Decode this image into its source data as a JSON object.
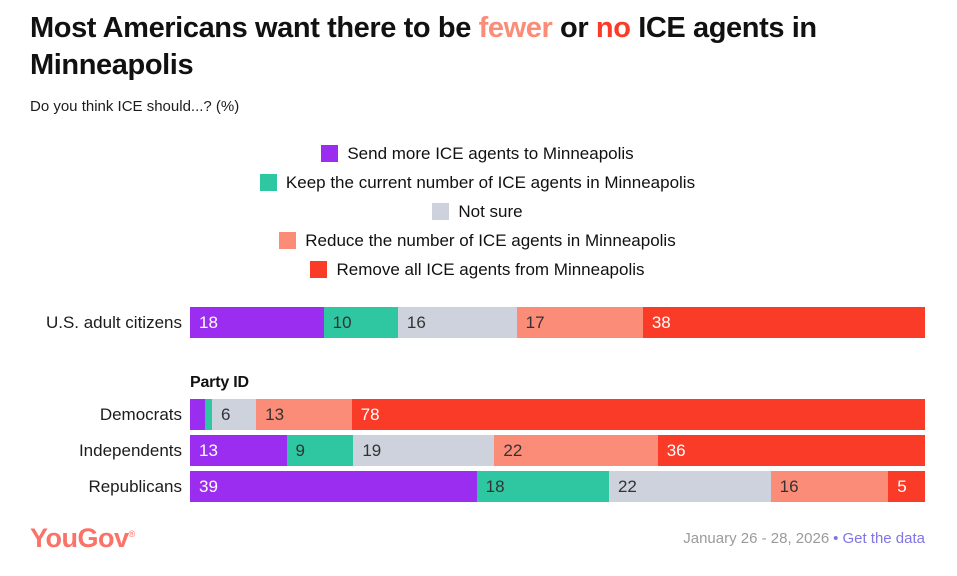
{
  "title": {
    "parts": [
      {
        "text": "Most Americans want there to be ",
        "color": "#111111"
      },
      {
        "text": "fewer",
        "color": "#FA8C78"
      },
      {
        "text": " or ",
        "color": "#111111"
      },
      {
        "text": "no",
        "color": "#FA3B28"
      },
      {
        "text": " ICE agents in Minneapolis",
        "color": "#111111"
      }
    ],
    "full_text": "Most Americans want there to be fewer or no ICE agents in Minneapolis"
  },
  "subtitle": "Do you think ICE should...? (%)",
  "chart_data": {
    "type": "bar",
    "stacked": true,
    "orientation": "horizontal",
    "unit": "%",
    "title": "Most Americans want there to be fewer or no ICE agents in Minneapolis",
    "question": "Do you think ICE should...? (%)",
    "legend_position": "top-center",
    "value_label_min": 5,
    "series": [
      {
        "name": "Send more ICE agents to Minneapolis",
        "color": "#9B2DF0",
        "text_color": "#FFFFFF"
      },
      {
        "name": "Keep the current number of ICE agents in Minneapolis",
        "color": "#2EC7A2",
        "text_color": "#333333"
      },
      {
        "name": "Not sure",
        "color": "#CDD2DC",
        "text_color": "#333333"
      },
      {
        "name": "Reduce the number of ICE agents in Minneapolis",
        "color": "#FA8C78",
        "text_color": "#333333"
      },
      {
        "name": "Remove all ICE agents from Minneapolis",
        "color": "#FA3B28",
        "text_color": "#FFFFFF"
      }
    ],
    "groups": [
      {
        "label": "U.S. adult citizens",
        "values": [
          18,
          10,
          16,
          17,
          38
        ]
      },
      {
        "label": "Democrats",
        "values": [
          2,
          1,
          6,
          13,
          78
        ],
        "section_header": "Party ID"
      },
      {
        "label": "Independents",
        "values": [
          13,
          9,
          19,
          22,
          36
        ]
      },
      {
        "label": "Republicans",
        "values": [
          39,
          18,
          22,
          16,
          5
        ]
      }
    ]
  },
  "footer": {
    "logo": "YouGov",
    "logo_reg": "®",
    "logo_color": "#FA7268",
    "date": "January 26 - 28, 2026",
    "separator": "•",
    "link": "Get the data",
    "link_color": "#8075E5"
  }
}
